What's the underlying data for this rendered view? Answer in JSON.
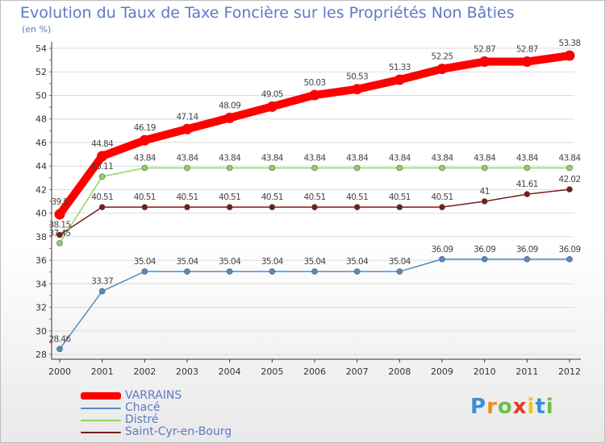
{
  "chart_data": {
    "type": "line",
    "title": "Evolution du Taux de Taxe Foncière sur les Propriétés Non Bâties",
    "unit_label": "(en %)",
    "x": [
      "2000",
      "2001",
      "2002",
      "2003",
      "2004",
      "2005",
      "2006",
      "2007",
      "2008",
      "2009",
      "2010",
      "2011",
      "2012"
    ],
    "ylim": [
      28,
      54
    ],
    "yticks": [
      28,
      30,
      32,
      34,
      36,
      38,
      40,
      42,
      44,
      46,
      48,
      50,
      52,
      54
    ],
    "grid": true,
    "legend_position": "bottom-left",
    "series": [
      {
        "name": "VARRAINS",
        "color": "#ff0000",
        "labels": [
          "39.9",
          "44.84",
          "46.19",
          "47.14",
          "48.09",
          "49.05",
          "50.03",
          "50.53",
          "51.33",
          "52.25",
          "52.87",
          "52.87",
          "53.38"
        ],
        "values": [
          39.9,
          44.84,
          46.19,
          47.14,
          48.09,
          49.05,
          50.03,
          50.53,
          51.33,
          52.25,
          52.87,
          52.87,
          53.38
        ]
      },
      {
        "name": "Chacé",
        "color": "#4f8cc9",
        "labels": [
          "28.46",
          "33.37",
          "35.04",
          "35.04",
          "35.04",
          "35.04",
          "35.04",
          "35.04",
          "35.04",
          "36.09",
          "36.09",
          "36.09",
          "36.09"
        ],
        "values": [
          28.46,
          33.37,
          35.04,
          35.04,
          35.04,
          35.04,
          35.04,
          35.04,
          35.04,
          36.09,
          36.09,
          36.09,
          36.09
        ]
      },
      {
        "name": "Distré",
        "color": "#8fd460",
        "labels": [
          "37.45",
          "43.11",
          "43.84",
          "43.84",
          "43.84",
          "43.84",
          "43.84",
          "43.84",
          "43.84",
          "43.84",
          "43.84",
          "43.84",
          "43.84"
        ],
        "values": [
          37.45,
          43.11,
          43.84,
          43.84,
          43.84,
          43.84,
          43.84,
          43.84,
          43.84,
          43.84,
          43.84,
          43.84,
          43.84
        ]
      },
      {
        "name": "Saint-Cyr-en-Bourg",
        "color": "#7a1a1a",
        "labels": [
          "38.15",
          "40.51",
          "40.51",
          "40.51",
          "40.51",
          "40.51",
          "40.51",
          "40.51",
          "40.51",
          "40.51",
          "41",
          "41.61",
          "42.02"
        ],
        "values": [
          38.15,
          40.51,
          40.51,
          40.51,
          40.51,
          40.51,
          40.51,
          40.51,
          40.51,
          40.51,
          41,
          41.61,
          42.02
        ]
      }
    ]
  },
  "logo": {
    "letters": [
      "P",
      "r",
      "o",
      "x",
      "i",
      "t",
      "i"
    ],
    "colors": [
      "#3a8fd8",
      "#f08a1c",
      "#6cc04a",
      "#e03a2a",
      "#f0c419",
      "#3a8fd8",
      "#6cc04a"
    ]
  }
}
